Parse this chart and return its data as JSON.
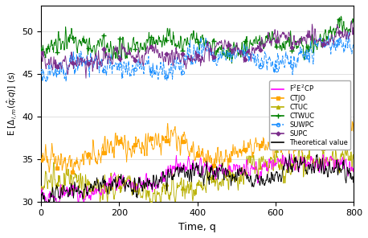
{
  "xlabel": "Time, q",
  "ylabel": "E [$\\Delta_{i,m}$($\\hat{q}$;$q$)] (s)",
  "xlim": [
    0,
    800
  ],
  "ylim": [
    30,
    53
  ],
  "yticks": [
    30,
    35,
    40,
    45,
    50
  ],
  "xticks": [
    0,
    200,
    400,
    600,
    800
  ],
  "n_points": 800,
  "colors": {
    "F2E2CP": "#ff00ff",
    "CTJO": "#ffa500",
    "CTUC": "#b8b000",
    "CTWUC": "#008000",
    "SUWPC": "#1e90ff",
    "SUPC": "#7b2d8b",
    "Theoretical": "#000000"
  },
  "legend_labels": [
    "F$^2$E$^2$CP",
    "CTJO",
    "CTUC",
    "CTWUC",
    "SUWPC",
    "SUPC",
    "Theoretical value"
  ],
  "figsize": [
    4.58,
    2.96
  ],
  "dpi": 100,
  "base_starts": {
    "Theoretical": 30.5,
    "F2E2CP": 30.8,
    "CTJO": 34.8,
    "CTUC": 32.2,
    "CTWUC": 47.5,
    "SUWPC": 45.0,
    "SUPC": 47.0
  },
  "base_ends": {
    "Theoretical": 33.2,
    "F2E2CP": 33.5,
    "CTJO": 38.5,
    "CTUC": 35.5,
    "CTWUC": 50.5,
    "SUWPC": 48.5,
    "SUPC": 50.0
  },
  "noise_amp": {
    "Theoretical": 0.9,
    "F2E2CP": 0.8,
    "CTJO": 1.1,
    "CTUC": 1.2,
    "CTWUC": 0.9,
    "SUWPC": 1.0,
    "SUPC": 0.85
  }
}
